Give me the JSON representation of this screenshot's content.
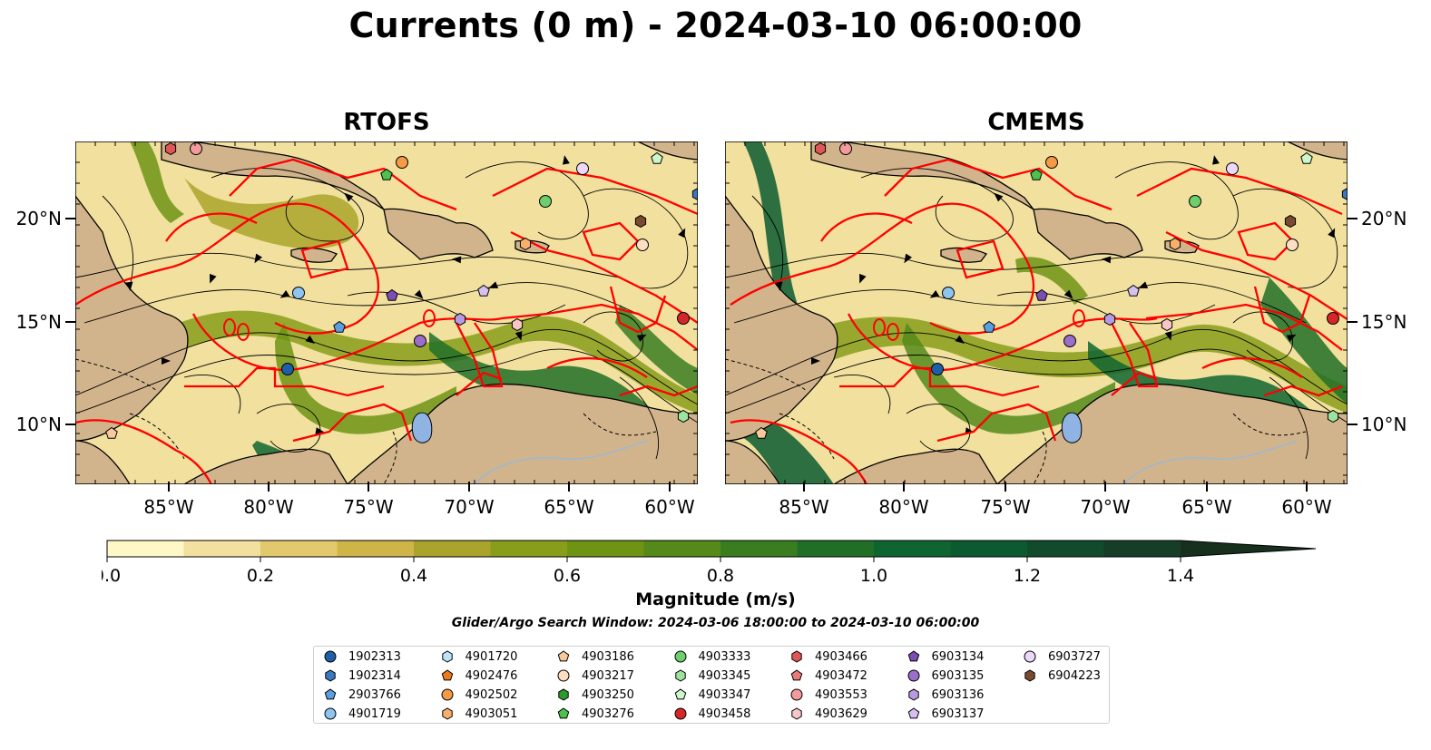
{
  "title": "Currents (0 m) - 2024-03-10 06:00:00",
  "panels": [
    {
      "name": "RTOFS"
    },
    {
      "name": "CMEMS"
    }
  ],
  "axes": {
    "x_ticks": [
      "85°W",
      "80°W",
      "75°W",
      "70°W",
      "65°W",
      "60°W"
    ],
    "y_ticks": [
      "20°N",
      "15°N",
      "10°N"
    ]
  },
  "colorbar": {
    "label": "Magnitude (m/s)",
    "ticks": [
      "0.0",
      "0.2",
      "0.4",
      "0.6",
      "0.8",
      "1.0",
      "1.2",
      "1.4"
    ],
    "colors": [
      "#fef7c6",
      "#f1e09e",
      "#e2c96d",
      "#cfb548",
      "#aaa42c",
      "#889e1a",
      "#6f9414",
      "#55891a",
      "#3a7d21",
      "#216f27",
      "#0f6530",
      "#0c5a30",
      "#124a2c",
      "#163d26",
      "#17301e"
    ]
  },
  "search_window": "Glider/Argo Search Window: 2024-03-06 18:00:00 to 2024-03-10 06:00:00",
  "legend": [
    {
      "id": "1902313",
      "marker": "circle",
      "color": "#1f5fa8"
    },
    {
      "id": "1902314",
      "marker": "hexagon",
      "color": "#3a78c4"
    },
    {
      "id": "2903766",
      "marker": "pentagon",
      "color": "#5b9fe0"
    },
    {
      "id": "4901719",
      "marker": "circle",
      "color": "#8ec4f0"
    },
    {
      "id": "4901720",
      "marker": "hexagon",
      "color": "#bde3f8"
    },
    {
      "id": "4902476",
      "marker": "pentagon",
      "color": "#f07a1a"
    },
    {
      "id": "4902502",
      "marker": "circle",
      "color": "#f59b45"
    },
    {
      "id": "4903051",
      "marker": "hexagon",
      "color": "#f7b06a"
    },
    {
      "id": "4903186",
      "marker": "pentagon",
      "color": "#f8c99a"
    },
    {
      "id": "4903217",
      "marker": "circle",
      "color": "#fde0c2"
    },
    {
      "id": "4903250",
      "marker": "hexagon",
      "color": "#2a9a2a"
    },
    {
      "id": "4903276",
      "marker": "pentagon",
      "color": "#4cc24c"
    },
    {
      "id": "4903333",
      "marker": "circle",
      "color": "#6ccf6c"
    },
    {
      "id": "4903345",
      "marker": "hexagon",
      "color": "#9de39d"
    },
    {
      "id": "4903347",
      "marker": "pentagon",
      "color": "#cdf6cd"
    },
    {
      "id": "4903458",
      "marker": "circle",
      "color": "#d62728"
    },
    {
      "id": "4903466",
      "marker": "hexagon",
      "color": "#e05555"
    },
    {
      "id": "4903472",
      "marker": "pentagon",
      "color": "#ec7a7a"
    },
    {
      "id": "4903553",
      "marker": "circle",
      "color": "#f39a9a"
    },
    {
      "id": "4903629",
      "marker": "hexagon",
      "color": "#f8c6c6"
    },
    {
      "id": "6903134",
      "marker": "pentagon",
      "color": "#7b4fb2"
    },
    {
      "id": "6903135",
      "marker": "circle",
      "color": "#9a6fcc"
    },
    {
      "id": "6903136",
      "marker": "hexagon",
      "color": "#b89ae0"
    },
    {
      "id": "6903137",
      "marker": "pentagon",
      "color": "#d5c0f0"
    },
    {
      "id": "6903727",
      "marker": "circle",
      "color": "#ebd8fa"
    },
    {
      "id": "6904223",
      "marker": "hexagon",
      "color": "#7a4a30"
    }
  ]
}
